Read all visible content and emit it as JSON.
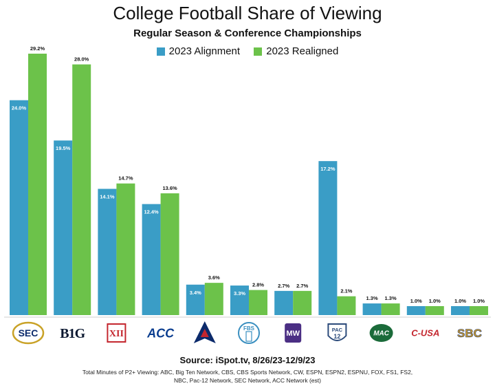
{
  "chart_data": {
    "type": "bar",
    "title": "College Football Share of Viewing",
    "subtitle": "Regular Season & Conference Championships",
    "categories": [
      "SEC",
      "B1G",
      "XII",
      "ACC",
      "AAC",
      "FBS Independents",
      "MWC",
      "PAC-12",
      "MAC",
      "C-USA",
      "SBC"
    ],
    "series": [
      {
        "name": "2023 Alignment",
        "color": "#3a9dc6",
        "values": [
          24.0,
          19.5,
          14.1,
          12.4,
          3.4,
          3.3,
          2.7,
          17.2,
          1.3,
          1.0,
          1.0
        ],
        "labels": [
          "24.0%",
          "19.5%",
          "14.1%",
          "12.4%",
          "3.4%",
          "3.3%",
          "2.7%",
          "17.2%",
          "1.3%",
          "1.0%",
          "1.0%"
        ]
      },
      {
        "name": "2023 Realigned",
        "color": "#6cc24a",
        "values": [
          29.2,
          28.0,
          14.7,
          13.6,
          3.6,
          2.8,
          2.7,
          2.1,
          1.3,
          1.0,
          1.0
        ],
        "labels": [
          "29.2%",
          "28.0%",
          "14.7%",
          "13.6%",
          "3.6%",
          "2.8%",
          "2.7%",
          "2.1%",
          "1.3%",
          "1.0%",
          "1.0%"
        ]
      }
    ],
    "legend_position": "top-center",
    "grid": false,
    "ylim": [
      0,
      30
    ]
  },
  "logos": [
    {
      "label": "SEC",
      "icon": "sec-logo",
      "color": "#0b2a6b"
    },
    {
      "label": "B1G",
      "icon": "big-ten-logo",
      "color": "#0b1830"
    },
    {
      "label": "XII",
      "icon": "big-12-logo",
      "color": "#c4262e"
    },
    {
      "label": "ACC",
      "icon": "acc-logo",
      "color": "#0a3d8f"
    },
    {
      "label": "",
      "icon": "aac-logo",
      "color": "#0b2a6b"
    },
    {
      "label": "FBS",
      "icon": "fbs-independents-logo",
      "color": "#3a8fc0"
    },
    {
      "label": "MW",
      "icon": "mountain-west-logo",
      "color": "#4b2f84"
    },
    {
      "label": "PAC 12",
      "icon": "pac-12-logo",
      "color": "#2b4a7a"
    },
    {
      "label": "MAC",
      "icon": "mac-logo",
      "color": "#1b6b3a"
    },
    {
      "label": "C-USA",
      "icon": "conference-usa-logo",
      "color": "#c4262e"
    },
    {
      "label": "SBC",
      "icon": "sun-belt-logo",
      "color": "#d8a22a"
    }
  ],
  "source": "Source: iSpot.tv, 8/26/23-12/9/23",
  "footnote": "Total Minutes of P2+ Viewing: ABC, Big Ten Network, CBS, CBS Sports Network, CW, ESPN, ESPN2, ESPNU, FOX, FS1, FS2, NBC, Pac-12 Network, SEC Network, ACC Network (est)"
}
